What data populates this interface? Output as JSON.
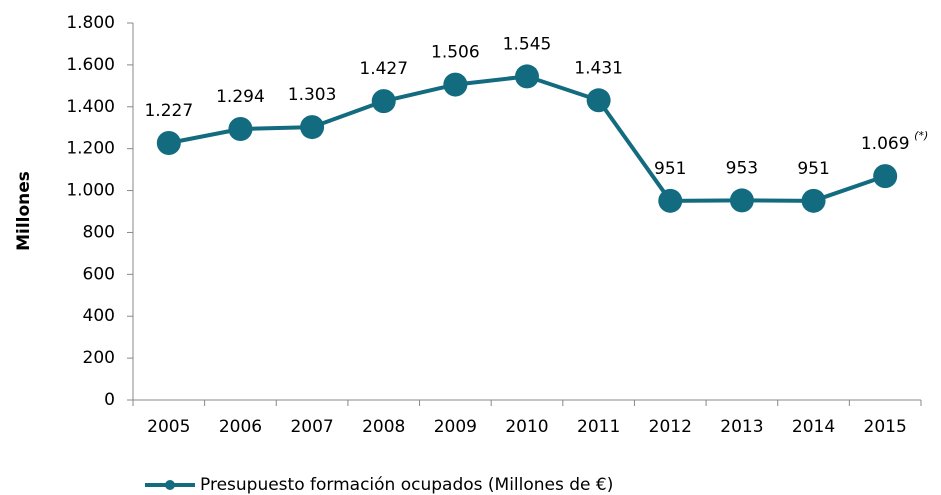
{
  "chart_data": {
    "type": "line",
    "y_label": "Millones",
    "categories": [
      "2005",
      "2006",
      "2007",
      "2008",
      "2009",
      "2010",
      "2011",
      "2012",
      "2013",
      "2014",
      "2015"
    ],
    "series": [
      {
        "name": "Presupuesto formación ocupados (Millones de €)",
        "color": "#136b80",
        "values": [
          1227,
          1294,
          1303,
          1427,
          1506,
          1545,
          1431,
          951,
          953,
          951,
          1069
        ],
        "value_labels": [
          "1.227",
          "1.294",
          "1.303",
          "1.427",
          "1.506",
          "1.545",
          "1.431",
          "951",
          "953",
          "951",
          "1.069"
        ]
      }
    ],
    "annotation": "(*)",
    "ylim": [
      0,
      1800
    ],
    "yticks": [
      0,
      200,
      400,
      600,
      800,
      {
        "value": 1000,
        "label": "1.000"
      },
      {
        "value": 1200,
        "label": "1.200"
      },
      {
        "value": 1400,
        "label": "1.400"
      },
      {
        "value": 1600,
        "label": "1.600"
      },
      {
        "value": 1800,
        "label": "1.800"
      }
    ],
    "legend": "bottom"
  }
}
